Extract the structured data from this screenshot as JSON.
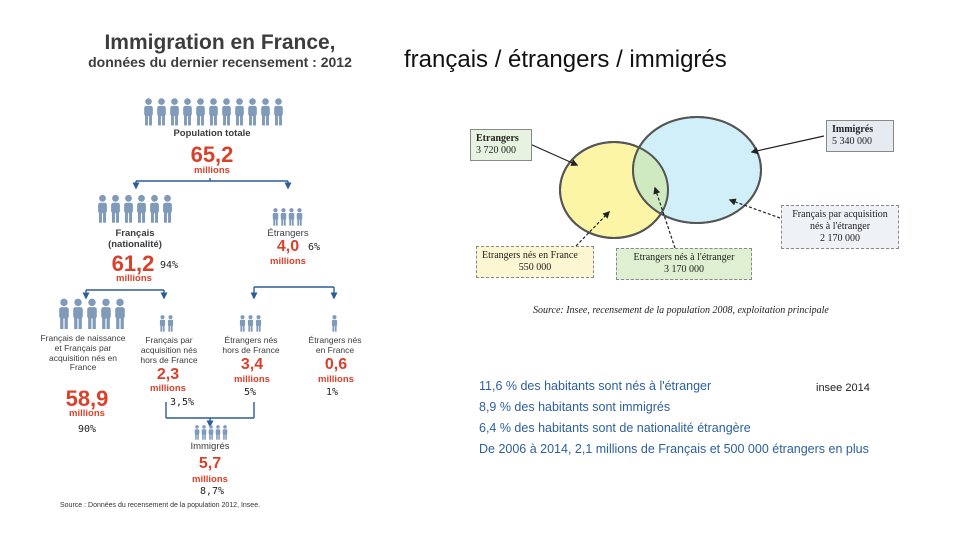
{
  "left": {
    "title_line1": "Immigration en France,",
    "title_line2": "données du dernier recensement : 2012",
    "pop_label": "Population totale",
    "pop_value": "65,2",
    "pop_unit": "millions",
    "francais_label1": "Français",
    "francais_label2": "(nationalité)",
    "francais_value": "61,2",
    "francais_unit": "millions",
    "francais_pct": "94%",
    "etrangers_label": "Étrangers",
    "etrangers_value": "4,0",
    "etrangers_unit": "millions",
    "etrangers_pct": "6%",
    "fr_naiss_label": "Français de naissance et Français par acquisition nés en France",
    "fr_naiss_value": "58,9",
    "fr_naiss_unit": "millions",
    "fr_naiss_pct": "90%",
    "fr_acq_label": "Français par acquisition nés hors de France",
    "fr_acq_value": "2,3",
    "fr_acq_unit": "millions",
    "fr_acq_pct": "3,5%",
    "et_hors_label": "Étrangers nés hors de France",
    "et_hors_value": "3,4",
    "et_hors_unit": "millions",
    "et_hors_pct": "5%",
    "et_fr_label": "Étrangers nés en France",
    "et_fr_value": "0,6",
    "et_fr_unit": "millions",
    "et_fr_pct": "1%",
    "immig_label": "Immigrés",
    "immig_value": "5,7",
    "immig_unit": "millions",
    "immig_pct": "8,7%",
    "source": "Source : Données du recensement de la population 2012, Insee."
  },
  "right": {
    "title": "français / étrangers / immigrés",
    "box_etrangers_l1": "Etrangers",
    "box_etrangers_l2": "3 720 000",
    "box_immigres_l1": "Immigrés",
    "box_immigres_l2": "5 340 000",
    "box_fracq_l1": "Français par acquisition",
    "box_fracq_l2": "nés à l'étranger",
    "box_fracq_l3": "2 170 000",
    "box_etfr_l1": "Etrangers nés en France",
    "box_etfr_l2": "550 000",
    "box_etetr_l1": "Etrangers nés à l'étranger",
    "box_etetr_l2": "3 170 000",
    "source": "Source: Insee, recensement de la population 2008, exploitation principale",
    "stat1": "11,6 % des habitants sont nés à l'étranger",
    "stat2": "8,9 % des habitants sont immigrés",
    "stat3": "6,4 % des habitants sont de nationalité étrangère",
    "stat4": "De 2006 à 2014, 2,1 millions de Français et 500 000 étrangers en plus",
    "insee_tag": "insee 2014"
  },
  "colors": {
    "accent_red": "#d9412b",
    "arrow_blue": "#2e5b9a",
    "person_blue": "#7f9bb9",
    "circle_yellow": "#fdf5a6",
    "circle_blue": "#c9ecf7",
    "overlap_green": "#cfe9c0",
    "box_etrangers": "#e8f2e0",
    "box_immigres": "#e6ebf2",
    "stats_blue": "#2b5f9e"
  },
  "icons": [
    "person-icon"
  ]
}
